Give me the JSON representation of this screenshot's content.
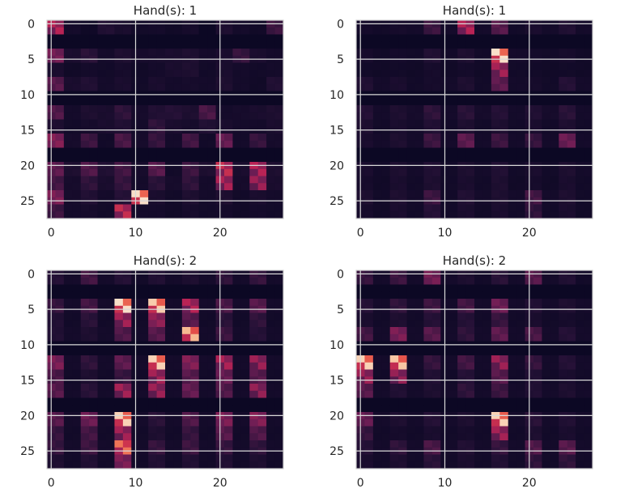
{
  "figure": {
    "background": "#ffffff"
  },
  "chart_data": [
    {
      "type": "heatmap",
      "title": "Hand(s): 1",
      "rows": 28,
      "cols": 28,
      "xticks": [
        "0",
        "10",
        "20"
      ],
      "yticks": [
        "0",
        "5",
        "10",
        "15",
        "20",
        "25"
      ],
      "xlim": [
        -0.5,
        27.5
      ],
      "ylim": [
        27.5,
        -0.5
      ],
      "grid": true,
      "colormap": "rocket",
      "block_size": 2,
      "block_values": [
        [
          0.55,
          0.05,
          0.02,
          0.12,
          0.08,
          0.04,
          0.05,
          0.03,
          0.06,
          0.0,
          0.1,
          0.05,
          0.03,
          0.22
        ],
        [
          0.0,
          0.0,
          0.0,
          0.0,
          0.0,
          0.0,
          0.0,
          0.0,
          0.0,
          0.0,
          0.0,
          0.0,
          0.0,
          0.0
        ],
        [
          0.38,
          0.08,
          0.16,
          0.05,
          0.1,
          0.06,
          0.07,
          0.08,
          0.1,
          0.05,
          0.08,
          0.2,
          0.08,
          0.05
        ],
        [
          0.08,
          0.03,
          0.05,
          0.04,
          0.06,
          0.03,
          0.05,
          0.08,
          0.1,
          0.04,
          0.08,
          0.05,
          0.04,
          0.05
        ],
        [
          0.3,
          0.08,
          0.12,
          0.05,
          0.08,
          0.04,
          0.08,
          0.05,
          0.06,
          0.05,
          0.1,
          0.05,
          0.03,
          0.12
        ],
        [
          0.0,
          0.0,
          0.0,
          0.0,
          0.0,
          0.0,
          0.0,
          0.0,
          0.0,
          0.0,
          0.0,
          0.0,
          0.0,
          0.0
        ],
        [
          0.28,
          0.05,
          0.1,
          0.08,
          0.18,
          0.06,
          0.12,
          0.14,
          0.1,
          0.26,
          0.05,
          0.06,
          0.08,
          0.1
        ],
        [
          0.1,
          0.04,
          0.06,
          0.08,
          0.12,
          0.05,
          0.18,
          0.08,
          0.06,
          0.12,
          0.08,
          0.05,
          0.05,
          0.08
        ],
        [
          0.42,
          0.06,
          0.22,
          0.04,
          0.26,
          0.06,
          0.2,
          0.05,
          0.24,
          0.04,
          0.34,
          0.05,
          0.2,
          0.06
        ],
        [
          0.0,
          0.0,
          0.0,
          0.0,
          0.0,
          0.0,
          0.0,
          0.0,
          0.0,
          0.0,
          0.0,
          0.0,
          0.0,
          0.0
        ],
        [
          0.32,
          0.1,
          0.28,
          0.12,
          0.24,
          0.06,
          0.3,
          0.04,
          0.22,
          0.1,
          0.6,
          0.08,
          0.55,
          0.1
        ],
        [
          0.24,
          0.06,
          0.18,
          0.08,
          0.2,
          0.05,
          0.16,
          0.06,
          0.18,
          0.05,
          0.52,
          0.06,
          0.48,
          0.08
        ],
        [
          0.4,
          0.06,
          0.12,
          0.05,
          0.14,
          0.98,
          0.08,
          0.04,
          0.1,
          0.05,
          0.1,
          0.04,
          0.08,
          0.05
        ],
        [
          0.22,
          0.05,
          0.06,
          0.04,
          0.6,
          0.05,
          0.05,
          0.03,
          0.06,
          0.04,
          0.05,
          0.03,
          0.05,
          0.04
        ]
      ]
    },
    {
      "type": "heatmap",
      "title": "Hand(s): 1",
      "rows": 28,
      "cols": 28,
      "xticks": [
        "0",
        "10",
        "20"
      ],
      "yticks": [
        "0",
        "5",
        "10",
        "15",
        "20",
        "25"
      ],
      "xlim": [
        -0.5,
        27.5
      ],
      "ylim": [
        27.5,
        -0.5
      ],
      "grid": true,
      "colormap": "rocket",
      "block_size": 2,
      "block_values": [
        [
          0.05,
          0.04,
          0.06,
          0.05,
          0.22,
          0.05,
          0.55,
          0.05,
          0.3,
          0.04,
          0.08,
          0.05,
          0.12,
          0.05
        ],
        [
          0.0,
          0.0,
          0.0,
          0.0,
          0.0,
          0.0,
          0.0,
          0.0,
          0.0,
          0.0,
          0.0,
          0.0,
          0.0,
          0.0
        ],
        [
          0.06,
          0.03,
          0.05,
          0.04,
          0.12,
          0.04,
          0.1,
          0.04,
          0.98,
          0.05,
          0.05,
          0.04,
          0.06,
          0.03
        ],
        [
          0.04,
          0.03,
          0.04,
          0.03,
          0.06,
          0.03,
          0.05,
          0.03,
          0.5,
          0.04,
          0.04,
          0.03,
          0.04,
          0.03
        ],
        [
          0.12,
          0.05,
          0.08,
          0.04,
          0.06,
          0.05,
          0.1,
          0.04,
          0.32,
          0.05,
          0.06,
          0.04,
          0.14,
          0.05
        ],
        [
          0.0,
          0.0,
          0.0,
          0.0,
          0.0,
          0.0,
          0.0,
          0.0,
          0.0,
          0.0,
          0.0,
          0.0,
          0.0,
          0.0
        ],
        [
          0.14,
          0.05,
          0.1,
          0.06,
          0.18,
          0.05,
          0.16,
          0.06,
          0.14,
          0.05,
          0.12,
          0.06,
          0.16,
          0.05
        ],
        [
          0.1,
          0.04,
          0.08,
          0.05,
          0.12,
          0.04,
          0.1,
          0.04,
          0.1,
          0.04,
          0.08,
          0.04,
          0.1,
          0.04
        ],
        [
          0.08,
          0.05,
          0.1,
          0.05,
          0.22,
          0.05,
          0.32,
          0.05,
          0.22,
          0.05,
          0.2,
          0.05,
          0.36,
          0.05
        ],
        [
          0.0,
          0.0,
          0.0,
          0.0,
          0.0,
          0.0,
          0.0,
          0.0,
          0.0,
          0.0,
          0.0,
          0.0,
          0.0,
          0.0
        ],
        [
          0.08,
          0.04,
          0.1,
          0.05,
          0.12,
          0.04,
          0.1,
          0.05,
          0.12,
          0.04,
          0.08,
          0.04,
          0.1,
          0.05
        ],
        [
          0.06,
          0.03,
          0.08,
          0.04,
          0.1,
          0.04,
          0.08,
          0.04,
          0.1,
          0.03,
          0.06,
          0.03,
          0.08,
          0.04
        ],
        [
          0.1,
          0.04,
          0.1,
          0.05,
          0.22,
          0.04,
          0.12,
          0.05,
          0.1,
          0.05,
          0.24,
          0.05,
          0.1,
          0.04
        ],
        [
          0.06,
          0.03,
          0.08,
          0.04,
          0.14,
          0.04,
          0.08,
          0.03,
          0.08,
          0.04,
          0.18,
          0.04,
          0.08,
          0.03
        ]
      ]
    },
    {
      "type": "heatmap",
      "title": "Hand(s): 2",
      "rows": 28,
      "cols": 28,
      "xticks": [
        "0",
        "10",
        "20"
      ],
      "yticks": [
        "0",
        "5",
        "10",
        "15",
        "20",
        "25"
      ],
      "xlim": [
        -0.5,
        27.5
      ],
      "ylim": [
        27.5,
        -0.5
      ],
      "grid": true,
      "colormap": "rocket",
      "block_size": 2,
      "block_values": [
        [
          0.14,
          0.05,
          0.24,
          0.05,
          0.14,
          0.04,
          0.12,
          0.05,
          0.1,
          0.05,
          0.18,
          0.05,
          0.2,
          0.05
        ],
        [
          0.0,
          0.0,
          0.0,
          0.0,
          0.0,
          0.0,
          0.0,
          0.0,
          0.0,
          0.0,
          0.0,
          0.0,
          0.0,
          0.0
        ],
        [
          0.2,
          0.05,
          0.24,
          0.05,
          0.98,
          0.05,
          0.95,
          0.05,
          0.55,
          0.05,
          0.26,
          0.05,
          0.3,
          0.05
        ],
        [
          0.12,
          0.04,
          0.16,
          0.04,
          0.5,
          0.04,
          0.45,
          0.04,
          0.3,
          0.04,
          0.16,
          0.04,
          0.18,
          0.04
        ],
        [
          0.12,
          0.05,
          0.1,
          0.05,
          0.28,
          0.05,
          0.3,
          0.05,
          0.92,
          0.05,
          0.22,
          0.05,
          0.14,
          0.05
        ],
        [
          0.0,
          0.0,
          0.0,
          0.0,
          0.0,
          0.0,
          0.0,
          0.0,
          0.0,
          0.0,
          0.0,
          0.0,
          0.0,
          0.0
        ],
        [
          0.4,
          0.05,
          0.18,
          0.05,
          0.32,
          0.05,
          0.96,
          0.05,
          0.42,
          0.05,
          0.52,
          0.05,
          0.48,
          0.05
        ],
        [
          0.26,
          0.04,
          0.1,
          0.04,
          0.2,
          0.04,
          0.5,
          0.04,
          0.3,
          0.04,
          0.34,
          0.04,
          0.3,
          0.04
        ],
        [
          0.3,
          0.05,
          0.16,
          0.05,
          0.5,
          0.05,
          0.48,
          0.05,
          0.34,
          0.05,
          0.28,
          0.05,
          0.46,
          0.05
        ],
        [
          0.0,
          0.0,
          0.0,
          0.0,
          0.0,
          0.0,
          0.0,
          0.0,
          0.0,
          0.0,
          0.0,
          0.0,
          0.0,
          0.0
        ],
        [
          0.3,
          0.05,
          0.36,
          0.05,
          0.96,
          0.05,
          0.16,
          0.05,
          0.28,
          0.05,
          0.4,
          0.05,
          0.42,
          0.05
        ],
        [
          0.2,
          0.04,
          0.24,
          0.04,
          0.5,
          0.04,
          0.1,
          0.04,
          0.2,
          0.04,
          0.3,
          0.04,
          0.28,
          0.04
        ],
        [
          0.2,
          0.05,
          0.22,
          0.05,
          0.8,
          0.05,
          0.2,
          0.05,
          0.22,
          0.05,
          0.2,
          0.05,
          0.18,
          0.05
        ],
        [
          0.1,
          0.04,
          0.12,
          0.04,
          0.4,
          0.04,
          0.12,
          0.04,
          0.12,
          0.04,
          0.12,
          0.04,
          0.1,
          0.04
        ]
      ]
    },
    {
      "type": "heatmap",
      "title": "Hand(s): 2",
      "rows": 28,
      "cols": 28,
      "xticks": [
        "0",
        "10",
        "20"
      ],
      "yticks": [
        "0",
        "5",
        "10",
        "15",
        "20",
        "25"
      ],
      "xlim": [
        -0.5,
        27.5
      ],
      "ylim": [
        27.5,
        -0.5
      ],
      "grid": true,
      "colormap": "rocket",
      "block_size": 2,
      "block_values": [
        [
          0.2,
          0.05,
          0.22,
          0.05,
          0.38,
          0.05,
          0.1,
          0.04,
          0.16,
          0.05,
          0.3,
          0.05,
          0.12,
          0.04
        ],
        [
          0.0,
          0.0,
          0.0,
          0.0,
          0.0,
          0.0,
          0.0,
          0.0,
          0.0,
          0.0,
          0.0,
          0.0,
          0.0,
          0.0
        ],
        [
          0.14,
          0.05,
          0.18,
          0.05,
          0.22,
          0.05,
          0.24,
          0.05,
          0.36,
          0.05,
          0.12,
          0.05,
          0.1,
          0.05
        ],
        [
          0.08,
          0.04,
          0.1,
          0.04,
          0.14,
          0.04,
          0.14,
          0.04,
          0.2,
          0.04,
          0.08,
          0.04,
          0.06,
          0.04
        ],
        [
          0.24,
          0.05,
          0.4,
          0.05,
          0.3,
          0.05,
          0.18,
          0.05,
          0.32,
          0.05,
          0.26,
          0.05,
          0.14,
          0.05
        ],
        [
          0.0,
          0.0,
          0.0,
          0.0,
          0.0,
          0.0,
          0.0,
          0.0,
          0.0,
          0.0,
          0.0,
          0.0,
          0.0,
          0.0
        ],
        [
          0.96,
          0.05,
          0.94,
          0.05,
          0.2,
          0.05,
          0.24,
          0.05,
          0.48,
          0.05,
          0.2,
          0.05,
          0.14,
          0.05
        ],
        [
          0.48,
          0.04,
          0.46,
          0.04,
          0.12,
          0.04,
          0.14,
          0.04,
          0.3,
          0.04,
          0.12,
          0.04,
          0.08,
          0.04
        ],
        [
          0.3,
          0.05,
          0.12,
          0.05,
          0.1,
          0.05,
          0.18,
          0.05,
          0.22,
          0.05,
          0.12,
          0.05,
          0.1,
          0.05
        ],
        [
          0.0,
          0.0,
          0.0,
          0.0,
          0.0,
          0.0,
          0.0,
          0.0,
          0.0,
          0.0,
          0.0,
          0.0,
          0.0,
          0.0
        ],
        [
          0.34,
          0.05,
          0.1,
          0.05,
          0.14,
          0.05,
          0.1,
          0.05,
          0.96,
          0.05,
          0.16,
          0.05,
          0.12,
          0.05
        ],
        [
          0.2,
          0.04,
          0.06,
          0.04,
          0.08,
          0.04,
          0.06,
          0.04,
          0.5,
          0.04,
          0.1,
          0.04,
          0.08,
          0.04
        ],
        [
          0.14,
          0.05,
          0.18,
          0.05,
          0.26,
          0.05,
          0.12,
          0.05,
          0.2,
          0.05,
          0.28,
          0.05,
          0.3,
          0.05
        ],
        [
          0.08,
          0.04,
          0.1,
          0.04,
          0.16,
          0.04,
          0.08,
          0.04,
          0.12,
          0.04,
          0.18,
          0.04,
          0.18,
          0.04
        ]
      ]
    }
  ]
}
